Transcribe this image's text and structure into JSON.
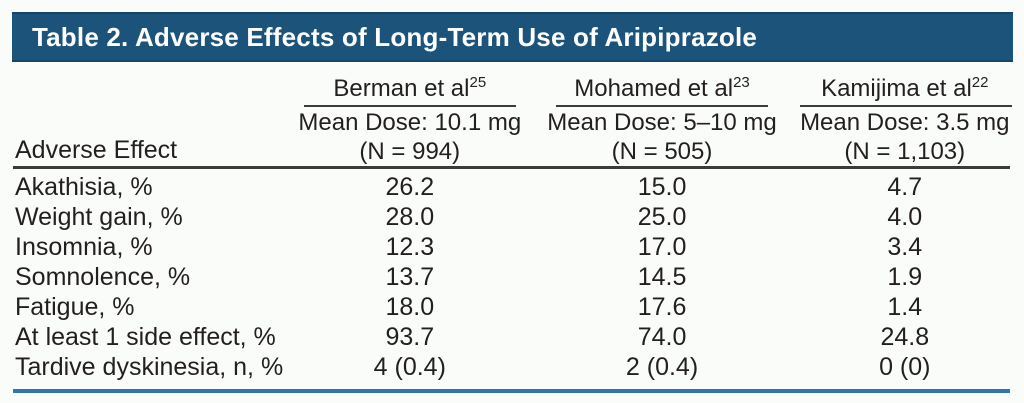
{
  "title_bar": {
    "text": "Table 2. Adverse Effects of Long-Term Use of Aripiprazole"
  },
  "table": {
    "row_header_label": "Adverse Effect",
    "studies": [
      {
        "name": "Berman et al",
        "ref": "25",
        "dose_line": "Mean Dose: 10.1 mg",
        "n_line": "(N = 994)"
      },
      {
        "name": "Mohamed et al",
        "ref": "23",
        "dose_line": "Mean Dose: 5–10 mg",
        "n_line": "(N = 505)"
      },
      {
        "name": "Kamijima et al",
        "ref": "22",
        "dose_line": "Mean Dose: 3.5 mg",
        "n_line": "(N = 1,103)"
      }
    ],
    "rows": [
      {
        "label": "Akathisia, %",
        "values": [
          "26.2",
          "15.0",
          "4.7"
        ]
      },
      {
        "label": "Weight gain, %",
        "values": [
          "28.0",
          "25.0",
          "4.0"
        ]
      },
      {
        "label": "Insomnia, %",
        "values": [
          "12.3",
          "17.0",
          "3.4"
        ]
      },
      {
        "label": "Somnolence, %",
        "values": [
          "13.7",
          "14.5",
          "1.9"
        ]
      },
      {
        "label": "Fatigue, %",
        "values": [
          "18.0",
          "17.6",
          "1.4"
        ]
      },
      {
        "label": "At least 1 side effect, %",
        "values": [
          "93.7",
          "74.0",
          "24.8"
        ]
      },
      {
        "label": "Tardive dyskinesia, n, %",
        "values": [
          "4 (0.4)",
          "2 (0.4)",
          "0 (0)"
        ]
      }
    ]
  },
  "colors": {
    "title_bar_background": "#1c537a",
    "title_text": "#ffffff",
    "header_rule_dark": "#3b3b3b",
    "bottom_rule_blue": "#2e76ad",
    "body_text": "#231f20",
    "page_background": "#fafcf9"
  },
  "chart_data": {
    "type": "table",
    "title": "Table 2. Adverse Effects of Long-Term Use of Aripiprazole",
    "columns": [
      "Adverse Effect",
      "Berman et al (ref 25), Mean Dose: 10.1 mg (N = 994)",
      "Mohamed et al (ref 23), Mean Dose: 5–10 mg (N = 505)",
      "Kamijima et al (ref 22), Mean Dose: 3.5 mg (N = 1,103)"
    ],
    "rows": [
      [
        "Akathisia, %",
        "26.2",
        "15.0",
        "4.7"
      ],
      [
        "Weight gain, %",
        "28.0",
        "25.0",
        "4.0"
      ],
      [
        "Insomnia, %",
        "12.3",
        "17.0",
        "3.4"
      ],
      [
        "Somnolence, %",
        "13.7",
        "14.5",
        "1.9"
      ],
      [
        "Fatigue, %",
        "18.0",
        "17.6",
        "1.4"
      ],
      [
        "At least 1 side effect, %",
        "93.7",
        "74.0",
        "24.8"
      ],
      [
        "Tardive dyskinesia, n, %",
        "4 (0.4)",
        "2 (0.4)",
        "0 (0)"
      ]
    ]
  }
}
